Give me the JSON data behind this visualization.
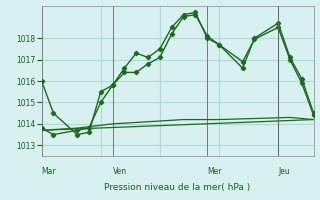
{
  "background_color": "#d8f0f0",
  "grid_color": "#b0d8d8",
  "line_color": "#1a6b1a",
  "title": "Pression niveau de la mer( hPa )",
  "xlabel_days": [
    "Mar",
    "Ven",
    "Mer",
    "Jeu"
  ],
  "xlabel_x_positions": [
    0,
    6,
    14,
    20
  ],
  "ylim": [
    1012.5,
    1019.5
  ],
  "yticks": [
    1013,
    1014,
    1015,
    1016,
    1017,
    1018
  ],
  "series1_x": [
    0,
    1,
    3,
    4,
    5,
    6,
    7,
    8,
    9,
    10,
    11,
    12,
    13,
    14,
    15,
    17,
    18,
    20,
    21,
    22,
    23
  ],
  "series1_y": [
    1016.0,
    1014.5,
    1013.5,
    1013.6,
    1015.5,
    1015.8,
    1016.6,
    1017.3,
    1017.1,
    1017.5,
    1018.5,
    1019.1,
    1019.2,
    1018.0,
    1017.7,
    1016.6,
    1018.0,
    1018.7,
    1017.1,
    1016.1,
    1014.5
  ],
  "series2_x": [
    0,
    1,
    3,
    4,
    5,
    6,
    7,
    8,
    9,
    10,
    11,
    12,
    13,
    14,
    15,
    17,
    18,
    20,
    21,
    22,
    23
  ],
  "series2_y": [
    1013.8,
    1013.5,
    1013.7,
    1013.8,
    1015.0,
    1015.8,
    1016.4,
    1016.4,
    1016.8,
    1017.1,
    1018.2,
    1019.0,
    1019.1,
    1018.1,
    1017.7,
    1016.9,
    1017.95,
    1018.5,
    1017.0,
    1015.9,
    1014.4
  ],
  "series3_x": [
    0,
    23
  ],
  "series3_y": [
    1013.7,
    1014.2
  ],
  "series4_x": [
    0,
    3,
    6,
    9,
    12,
    15,
    18,
    21,
    23
  ],
  "series4_y": [
    1013.7,
    1013.8,
    1014.0,
    1014.1,
    1014.2,
    1014.2,
    1014.25,
    1014.3,
    1014.2
  ],
  "vline_x": 20,
  "xlim": [
    0,
    23
  ]
}
